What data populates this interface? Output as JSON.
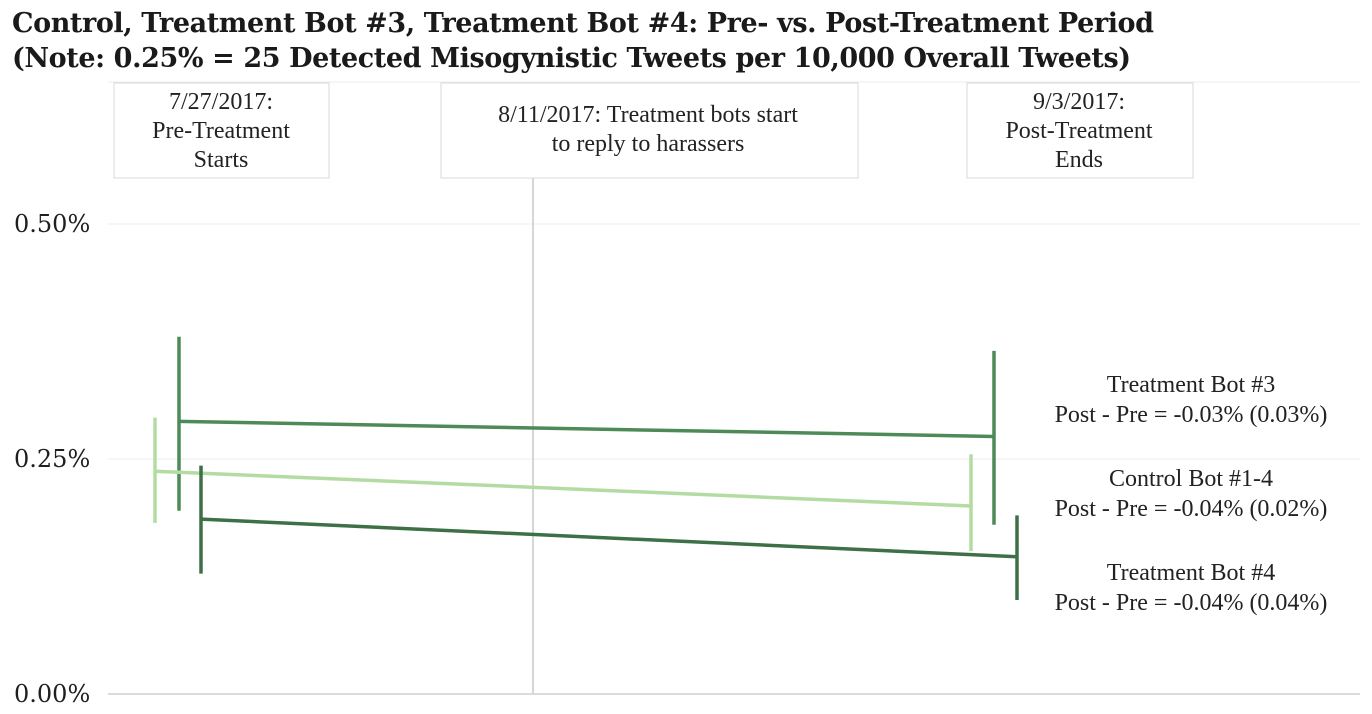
{
  "title": {
    "line1": "Control, Treatment Bot #3, Treatment Bot #4: Pre- vs. Post-Treatment Period",
    "line2": "(Note: 0.25% = 25 Detected Misogynistic Tweets per 10,000 Overall Tweets)"
  },
  "colors": {
    "treatment_bot_3": "#4e8a57",
    "control_bot": "#b3dca3",
    "treatment_bot_4": "#3d7046",
    "gridline": "#ececec",
    "axis": "#cfcfcf",
    "treatment_start_line": "#d6d6d6",
    "annotation_border": "#d9d9d9"
  },
  "chart_data": {
    "type": "line",
    "title": "Control, Treatment Bot #3, Treatment Bot #4: Pre- vs. Post-Treatment Period",
    "subtitle": "(Note: 0.25% = 25 Detected Misogynistic Tweets per 10,000 Overall Tweets)",
    "x": [
      "Pre-Treatment",
      "Post-Treatment"
    ],
    "ylim": [
      0,
      0.5
    ],
    "y_ticks": [
      {
        "value": 0.0,
        "label": "0.00%"
      },
      {
        "value": 0.25,
        "label": "0.25%"
      },
      {
        "value": 0.5,
        "label": "0.50%"
      }
    ],
    "grid": true,
    "series": [
      {
        "name": "Treatment Bot #3",
        "label_line1": "Treatment Bot #3",
        "label_line2": "Post - Pre = -0.03% (0.03%)",
        "color_key": "treatment_bot_3",
        "pre": {
          "value": 0.29,
          "low": 0.195,
          "high": 0.38
        },
        "post": {
          "value": 0.274,
          "low": 0.18,
          "high": 0.365
        }
      },
      {
        "name": "Control Bot #1-4",
        "label_line1": "Control Bot #1-4",
        "label_line2": "Post - Pre = -0.04% (0.02%)",
        "color_key": "control_bot",
        "pre": {
          "value": 0.237,
          "low": 0.182,
          "high": 0.294
        },
        "post": {
          "value": 0.2,
          "low": 0.152,
          "high": 0.255
        }
      },
      {
        "name": "Treatment Bot #4",
        "label_line1": "Treatment Bot #4",
        "label_line2": "Post - Pre = -0.04% (0.04%)",
        "color_key": "treatment_bot_4",
        "pre": {
          "value": 0.186,
          "low": 0.128,
          "high": 0.243
        },
        "post": {
          "value": 0.146,
          "low": 0.1,
          "high": 0.19
        }
      }
    ],
    "annotations": [
      {
        "key": "pre_start",
        "lines": [
          "7/27/2017:",
          "Pre-Treatment",
          "Starts"
        ]
      },
      {
        "key": "treatment_start",
        "lines": [
          "8/11/2017: Treatment bots start",
          "to reply to harassers"
        ]
      },
      {
        "key": "post_end",
        "lines": [
          "9/3/2017:",
          "Post-Treatment",
          "Ends"
        ]
      }
    ]
  }
}
